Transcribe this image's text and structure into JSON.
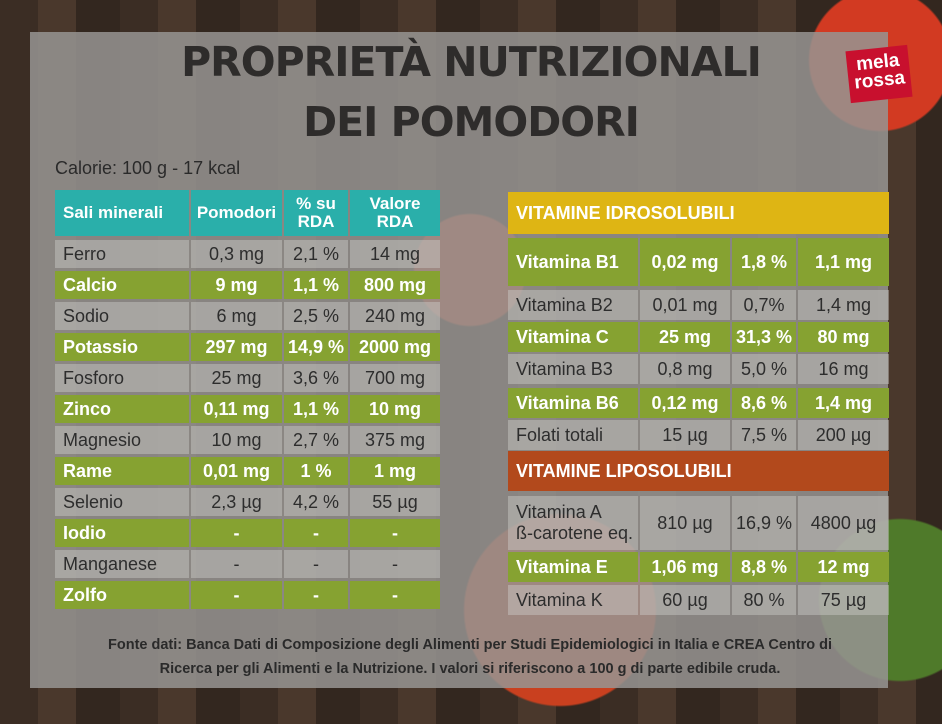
{
  "title_line1": "PROPRIETÀ NUTRIZIONALI",
  "title_line2": "DEI POMODORI",
  "logo": "mela rossa",
  "calories": "Calorie: 100 g - 17 kcal",
  "minerals": {
    "headers": [
      "Sali minerali",
      "Pomodori",
      "% su RDA",
      "Valore RDA"
    ],
    "rows": [
      {
        "name": "Ferro",
        "pomodori": "0,3 mg",
        "pct": "2,1 %",
        "rda": "14 mg",
        "highlight": false
      },
      {
        "name": "Calcio",
        "pomodori": "9 mg",
        "pct": "1,1 %",
        "rda": "800 mg",
        "highlight": true
      },
      {
        "name": "Sodio",
        "pomodori": "6 mg",
        "pct": "2,5 %",
        "rda": "240 mg",
        "highlight": false
      },
      {
        "name": "Potassio",
        "pomodori": "297 mg",
        "pct": "14,9 %",
        "rda": "2000 mg",
        "highlight": true
      },
      {
        "name": "Fosforo",
        "pomodori": "25 mg",
        "pct": "3,6 %",
        "rda": "700 mg",
        "highlight": false
      },
      {
        "name": "Zinco",
        "pomodori": "0,11 mg",
        "pct": "1,1 %",
        "rda": "10 mg",
        "highlight": true
      },
      {
        "name": "Magnesio",
        "pomodori": "10 mg",
        "pct": "2,7 %",
        "rda": "375 mg",
        "highlight": false
      },
      {
        "name": "Rame",
        "pomodori": "0,01 mg",
        "pct": "1 %",
        "rda": "1 mg",
        "highlight": true
      },
      {
        "name": "Selenio",
        "pomodori": "2,3 µg",
        "pct": "4,2 %",
        "rda": "55 µg",
        "highlight": false
      },
      {
        "name": "Iodio",
        "pomodori": "-",
        "pct": "-",
        "rda": "-",
        "highlight": true
      },
      {
        "name": "Manganese",
        "pomodori": "-",
        "pct": "-",
        "rda": "-",
        "highlight": false
      },
      {
        "name": "Zolfo",
        "pomodori": "-",
        "pct": "-",
        "rda": "-",
        "highlight": true
      }
    ]
  },
  "vitamins_hydro": {
    "header": "VITAMINE IDROSOLUBILI",
    "rows": [
      {
        "name": "Vitamina B1",
        "pomodori": "0,02 mg",
        "pct": "1,8 %",
        "rda": "1,1 mg",
        "highlight": true
      },
      {
        "name": "Vitamina B2",
        "pomodori": "0,01 mg",
        "pct": "0,7%",
        "rda": "1,4 mg",
        "highlight": false
      },
      {
        "name": "Vitamina C",
        "pomodori": "25 mg",
        "pct": "31,3 %",
        "rda": "80 mg",
        "highlight": true
      },
      {
        "name": "Vitamina B3",
        "pomodori": "0,8 mg",
        "pct": "5,0 %",
        "rda": "16 mg",
        "highlight": false
      },
      {
        "name": "Vitamina B6",
        "pomodori": "0,12 mg",
        "pct": "8,6 %",
        "rda": "1,4 mg",
        "highlight": true
      },
      {
        "name": "Folati totali",
        "pomodori": "15 µg",
        "pct": "7,5 %",
        "rda": "200 µg",
        "highlight": false
      }
    ]
  },
  "vitamins_lipo": {
    "header": "VITAMINE LIPOSOLUBILI",
    "rows": [
      {
        "name": "Vitamina A",
        "name2": "ß-carotene eq.",
        "pomodori": "810 µg",
        "pct": "16,9 %",
        "rda": "4800 µg",
        "highlight": false
      },
      {
        "name": "Vitamina E",
        "name2": "",
        "pomodori": "1,06 mg",
        "pct": "8,8 %",
        "rda": "12 mg",
        "highlight": true
      },
      {
        "name": "Vitamina K",
        "name2": "",
        "pomodori": "60 µg",
        "pct": "80 %",
        "rda": "75 µg",
        "highlight": false
      }
    ]
  },
  "source_line1": "Fonte dati: Banca Dati di Composizione degli Alimenti per Studi Epidemiologici in Italia e CREA Centro di",
  "source_line2": "Ricerca per gli Alimenti e la Nutrizione. I valori si riferiscono a 100 g di parte edibile cruda.",
  "colors": {
    "teal": "#2aafaa",
    "green": "#86a231",
    "yellow": "#deb514",
    "brown": "#b2491c"
  }
}
